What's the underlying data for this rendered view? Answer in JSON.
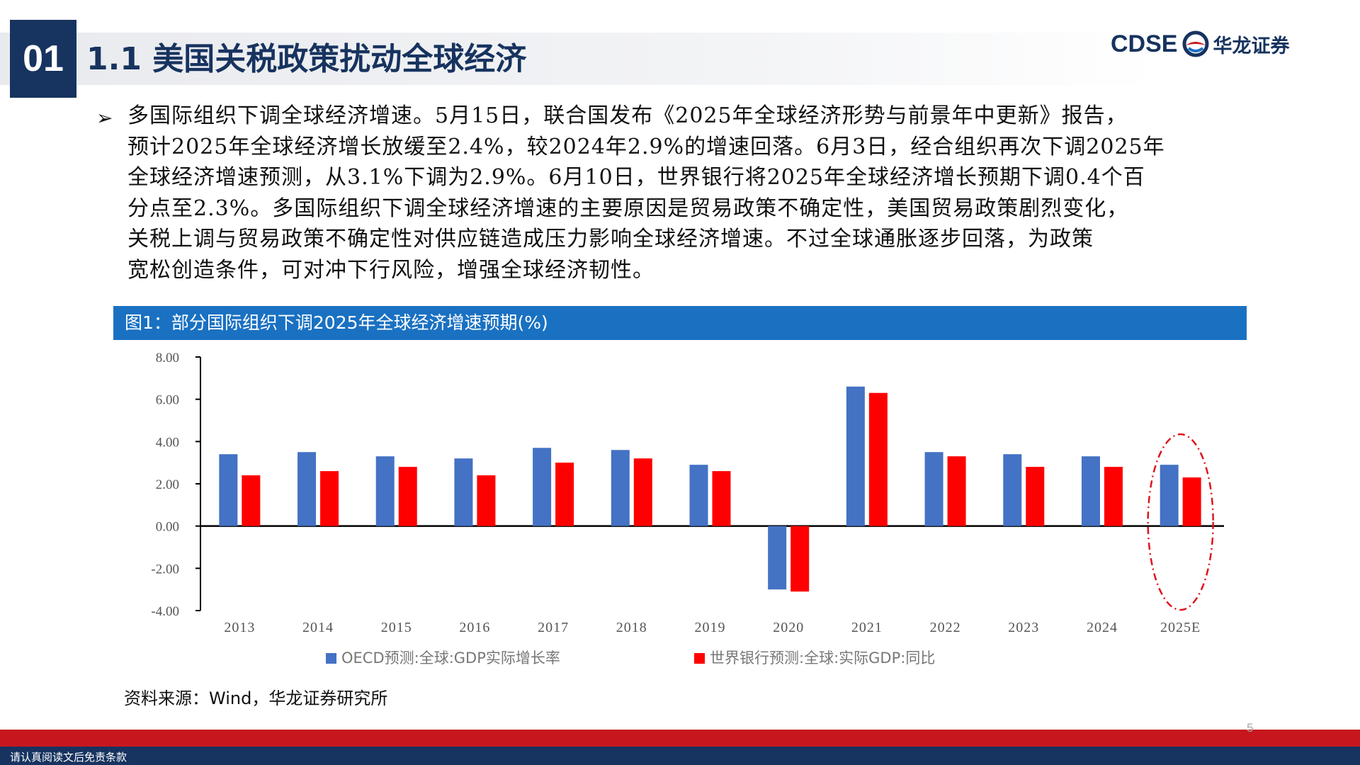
{
  "header": {
    "section_number": "01",
    "title": "1.1 美国关税政策扰动全球经济",
    "logo_latin": "CDSE",
    "logo_cn": "华龙证券"
  },
  "body": {
    "lines": [
      "多国际组织下调全球经济增速。5月15日，联合国发布《2025年全球经济形势与前景年中更新》报告，",
      "预计2025年全球经济增长放缓至2.4%，较2024年2.9%的增速回落。6月3日，经合组织再次下调2025年",
      "全球经济增速预测，从3.1%下调为2.9%。6月10日，世界银行将2025年全球经济增长预期下调0.4个百",
      "分点至2.3%。多国际组织下调全球经济增速的主要原因是贸易政策不确定性，美国贸易政策剧烈变化，",
      "关税上调与贸易政策不确定性对供应链造成压力影响全球经济增速。不过全球通胀逐步回落，为政策",
      "宽松创造条件，可对冲下行风险，增强全球经济韧性。"
    ]
  },
  "figure": {
    "caption": "图1：部分国际组织下调2025年全球经济增速预期(%)",
    "source": "资料来源：Wind，华龙证券研究所"
  },
  "chart_data": {
    "type": "bar",
    "categories": [
      "2013",
      "2014",
      "2015",
      "2016",
      "2017",
      "2018",
      "2019",
      "2020",
      "2021",
      "2022",
      "2023",
      "2024",
      "2025E"
    ],
    "series": [
      {
        "name": "OECD预测:全球:GDP实际增长率",
        "color": "#4472c4",
        "values": [
          3.4,
          3.5,
          3.3,
          3.2,
          3.7,
          3.6,
          2.9,
          -3.0,
          6.6,
          3.5,
          3.4,
          3.3,
          2.9
        ]
      },
      {
        "name": "世界银行预测:全球:实际GDP:同比",
        "color": "#ff0000",
        "values": [
          2.4,
          2.6,
          2.8,
          2.4,
          3.0,
          3.2,
          2.6,
          -3.1,
          6.3,
          3.3,
          2.8,
          2.8,
          2.3
        ]
      }
    ],
    "ylim": [
      -4.0,
      8.0
    ],
    "yticks": [
      "8.00",
      "6.00",
      "4.00",
      "2.00",
      "0.00",
      "-2.00",
      "-4.00"
    ],
    "grid": false,
    "legend_position": "bottom",
    "annotation": {
      "type": "dashed-ellipse",
      "color": "#e0141e",
      "highlight_category": "2025E"
    }
  },
  "footer": {
    "disclaimer": "请认真阅读文后免责条款",
    "page_number": "5"
  }
}
